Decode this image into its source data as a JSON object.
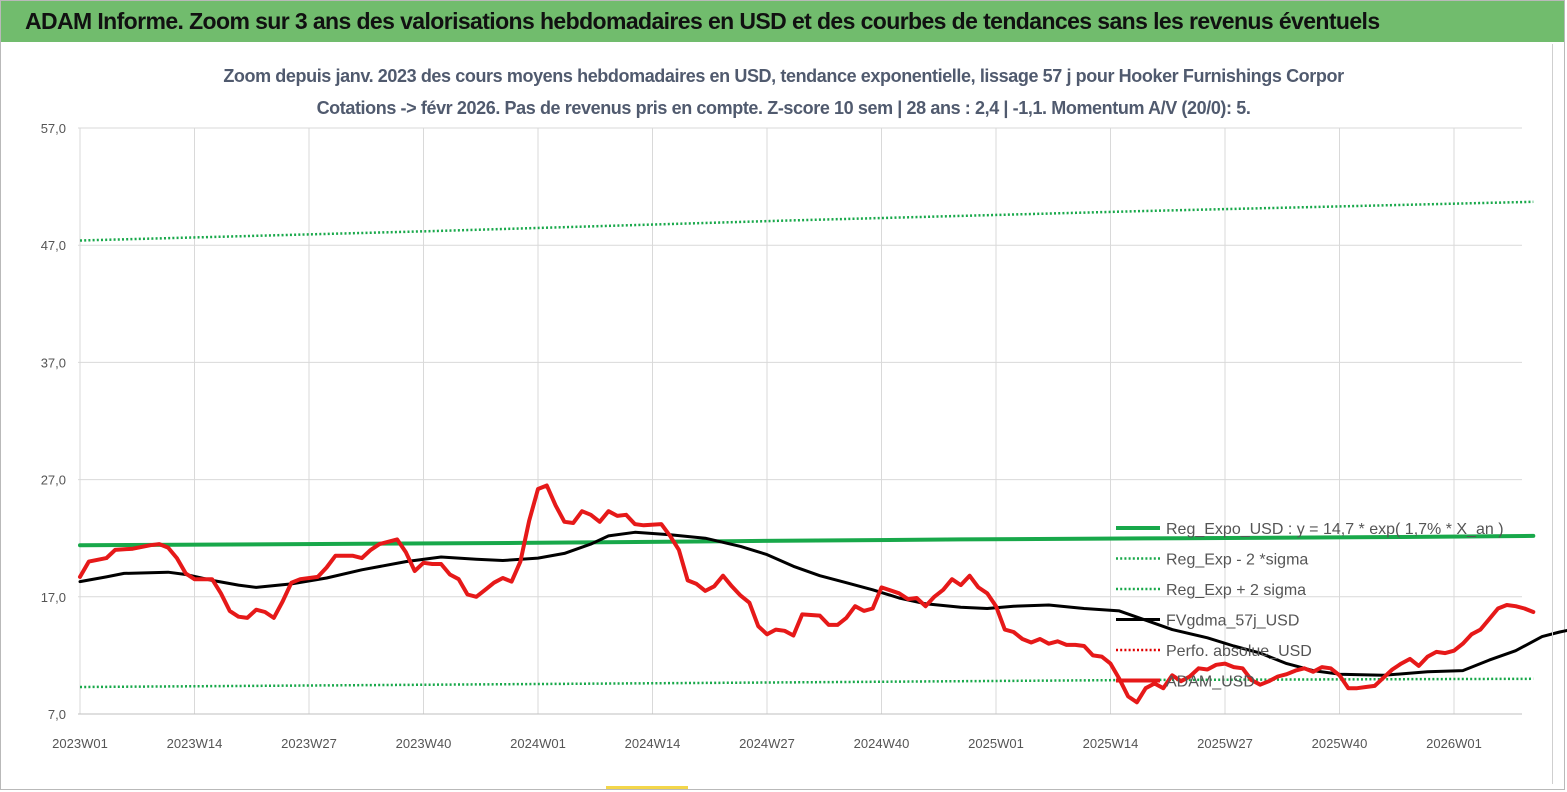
{
  "banner": {
    "title": "ADAM Informe. Zoom sur 3 ans des valorisations hebdomadaires en USD et des courbes de tendances sans les revenus éventuels",
    "background": "#71bc6d"
  },
  "chart_data": {
    "type": "line",
    "title": "Zoom depuis janv. 2023 des cours moyens hebdomadaires en USD, tendance exponentielle, lissage 57 j pour Hooker Furnishings Corpor",
    "subtitle": "Cotations -> févr 2026. Pas de revenus pris en compte. Z-score 10 sem  | 28 ans : 2,4 | -1,1. Momentum A/V (20/0): 5.",
    "xlabel": "",
    "ylabel": "",
    "x_ticks": [
      "2023W01",
      "2023W14",
      "2023W27",
      "2023W40",
      "2024W01",
      "2024W14",
      "2024W27",
      "2024W40",
      "2025W01",
      "2025W14",
      "2025W27",
      "2025W40",
      "2026W01"
    ],
    "x_range_weeks": [
      0,
      165
    ],
    "y_ticks": [
      "57,0",
      "47,0",
      "37,0",
      "27,0",
      "17,0",
      "7,0"
    ],
    "ylim": [
      7,
      57
    ],
    "grid": true,
    "legend_position": "right",
    "series": [
      {
        "name": "Reg_Expo_USD : y = 14,7 * exp( 1,7% *  X_an )",
        "color": "#18a84a",
        "style": "solid-thick",
        "points": [
          [
            0,
            21.4
          ],
          [
            25,
            21.5
          ],
          [
            50,
            21.6
          ],
          [
            75,
            21.75
          ],
          [
            100,
            21.9
          ],
          [
            125,
            22.0
          ],
          [
            150,
            22.1
          ],
          [
            165,
            22.2
          ]
        ]
      },
      {
        "name": "Reg_Exp - 2 *sigma",
        "color": "#18a84a",
        "style": "dotted",
        "points": [
          [
            0,
            9.3
          ],
          [
            40,
            9.5
          ],
          [
            80,
            9.7
          ],
          [
            120,
            9.9
          ],
          [
            165,
            10.0
          ]
        ]
      },
      {
        "name": "Reg_Exp + 2 sigma",
        "color": "#18a84a",
        "style": "dotted",
        "points": [
          [
            0,
            47.4
          ],
          [
            40,
            48.2
          ],
          [
            80,
            49.1
          ],
          [
            120,
            49.9
          ],
          [
            165,
            50.7
          ]
        ]
      },
      {
        "name": "FVgdma_57j_USD",
        "color": "#000000",
        "style": "solid",
        "points": [
          [
            0,
            18.3
          ],
          [
            3,
            18.7
          ],
          [
            5,
            19.0
          ],
          [
            10,
            19.1
          ],
          [
            12,
            18.9
          ],
          [
            15,
            18.4
          ],
          [
            18,
            18.0
          ],
          [
            20,
            17.8
          ],
          [
            24,
            18.1
          ],
          [
            28,
            18.6
          ],
          [
            32,
            19.3
          ],
          [
            37,
            20.0
          ],
          [
            41,
            20.4
          ],
          [
            45,
            20.2
          ],
          [
            48,
            20.1
          ],
          [
            52,
            20.3
          ],
          [
            55,
            20.7
          ],
          [
            58,
            21.5
          ],
          [
            60,
            22.2
          ],
          [
            63,
            22.5
          ],
          [
            67,
            22.3
          ],
          [
            71,
            22.0
          ],
          [
            75,
            21.3
          ],
          [
            78,
            20.6
          ],
          [
            81,
            19.6
          ],
          [
            84,
            18.8
          ],
          [
            87,
            18.2
          ],
          [
            90,
            17.6
          ],
          [
            93,
            16.9
          ],
          [
            96,
            16.4
          ],
          [
            100,
            16.1
          ],
          [
            103,
            16.0
          ],
          [
            106,
            16.2
          ],
          [
            110,
            16.3
          ],
          [
            114,
            16.0
          ],
          [
            118,
            15.8
          ],
          [
            121,
            15.0
          ],
          [
            124,
            14.2
          ],
          [
            128,
            13.5
          ],
          [
            131,
            12.8
          ],
          [
            134,
            12.2
          ],
          [
            137,
            11.3
          ],
          [
            140,
            10.7
          ],
          [
            143,
            10.4
          ],
          [
            148,
            10.3
          ],
          [
            153,
            10.6
          ],
          [
            157,
            10.7
          ],
          [
            160,
            11.6
          ],
          [
            163,
            12.4
          ],
          [
            166,
            13.6
          ],
          [
            168,
            14.0
          ],
          [
            170,
            14.3
          ],
          [
            171,
            14.4
          ]
        ]
      },
      {
        "name": "Perfo. absolue_USD",
        "color": "#e00000",
        "style": "dotted",
        "points": []
      },
      {
        "name": "ADAM_USD",
        "color": "#e61919",
        "style": "solid-thick",
        "points": [
          [
            0,
            18.7
          ],
          [
            1,
            20.0
          ],
          [
            3,
            20.3
          ],
          [
            4,
            21.0
          ],
          [
            6,
            21.1
          ],
          [
            8,
            21.4
          ],
          [
            9,
            21.5
          ],
          [
            10,
            21.2
          ],
          [
            11,
            20.3
          ],
          [
            12,
            19.0
          ],
          [
            13,
            18.5
          ],
          [
            15,
            18.5
          ],
          [
            16,
            17.3
          ],
          [
            17,
            15.8
          ],
          [
            18,
            15.3
          ],
          [
            19,
            15.2
          ],
          [
            20,
            15.9
          ],
          [
            21,
            15.7
          ],
          [
            22,
            15.2
          ],
          [
            23,
            16.6
          ],
          [
            24,
            18.2
          ],
          [
            25,
            18.5
          ],
          [
            27,
            18.7
          ],
          [
            28,
            19.5
          ],
          [
            29,
            20.5
          ],
          [
            31,
            20.5
          ],
          [
            32,
            20.3
          ],
          [
            33,
            21.0
          ],
          [
            34,
            21.5
          ],
          [
            36,
            21.9
          ],
          [
            37,
            20.8
          ],
          [
            38,
            19.2
          ],
          [
            39,
            19.9
          ],
          [
            40,
            19.8
          ],
          [
            41,
            19.8
          ],
          [
            42,
            18.9
          ],
          [
            43,
            18.5
          ],
          [
            44,
            17.2
          ],
          [
            45,
            17.0
          ],
          [
            46,
            17.6
          ],
          [
            47,
            18.2
          ],
          [
            48,
            18.6
          ],
          [
            49,
            18.3
          ],
          [
            50,
            20.0
          ],
          [
            51,
            23.5
          ],
          [
            52,
            26.2
          ],
          [
            53,
            26.5
          ],
          [
            54,
            24.8
          ],
          [
            55,
            23.4
          ],
          [
            56,
            23.3
          ],
          [
            57,
            24.3
          ],
          [
            58,
            24.0
          ],
          [
            59,
            23.4
          ],
          [
            60,
            24.3
          ],
          [
            61,
            23.9
          ],
          [
            62,
            24.0
          ],
          [
            63,
            23.2
          ],
          [
            64,
            23.1
          ],
          [
            66,
            23.2
          ],
          [
            67,
            22.2
          ],
          [
            68,
            21.0
          ],
          [
            69,
            18.4
          ],
          [
            70,
            18.1
          ],
          [
            71,
            17.5
          ],
          [
            72,
            17.9
          ],
          [
            73,
            18.8
          ],
          [
            74,
            17.9
          ],
          [
            75,
            17.1
          ],
          [
            76,
            16.5
          ],
          [
            77,
            14.5
          ],
          [
            78,
            13.8
          ],
          [
            79,
            14.2
          ],
          [
            80,
            14.1
          ],
          [
            81,
            13.7
          ],
          [
            82,
            15.5
          ],
          [
            84,
            15.4
          ],
          [
            85,
            14.6
          ],
          [
            86,
            14.6
          ],
          [
            87,
            15.2
          ],
          [
            88,
            16.2
          ],
          [
            89,
            15.8
          ],
          [
            90,
            16.0
          ],
          [
            91,
            17.8
          ],
          [
            93,
            17.3
          ],
          [
            94,
            16.8
          ],
          [
            95,
            16.9
          ],
          [
            96,
            16.2
          ],
          [
            97,
            17.0
          ],
          [
            98,
            17.6
          ],
          [
            99,
            18.5
          ],
          [
            100,
            18.0
          ],
          [
            101,
            18.8
          ],
          [
            102,
            17.8
          ],
          [
            103,
            17.3
          ],
          [
            104,
            16.2
          ],
          [
            105,
            14.2
          ],
          [
            106,
            14.0
          ],
          [
            107,
            13.4
          ],
          [
            108,
            13.1
          ],
          [
            109,
            13.4
          ],
          [
            110,
            13.0
          ],
          [
            111,
            13.2
          ],
          [
            112,
            12.9
          ],
          [
            113,
            12.9
          ],
          [
            114,
            12.8
          ],
          [
            115,
            12.0
          ],
          [
            116,
            11.9
          ],
          [
            117,
            11.3
          ],
          [
            118,
            10.0
          ],
          [
            119,
            8.5
          ],
          [
            120,
            8.0
          ],
          [
            121,
            9.2
          ],
          [
            122,
            9.6
          ],
          [
            123,
            9.2
          ],
          [
            124,
            10.3
          ],
          [
            125,
            9.8
          ],
          [
            126,
            10.2
          ],
          [
            127,
            10.9
          ],
          [
            128,
            10.8
          ],
          [
            129,
            11.2
          ],
          [
            130,
            11.3
          ],
          [
            131,
            11.0
          ],
          [
            132,
            10.9
          ],
          [
            133,
            9.9
          ],
          [
            134,
            9.5
          ],
          [
            135,
            9.8
          ],
          [
            136,
            10.2
          ],
          [
            137,
            10.4
          ],
          [
            138,
            10.7
          ],
          [
            139,
            10.9
          ],
          [
            140,
            10.6
          ],
          [
            141,
            11.0
          ],
          [
            142,
            10.9
          ],
          [
            143,
            10.3
          ],
          [
            144,
            9.2
          ],
          [
            145,
            9.2
          ],
          [
            146,
            9.3
          ],
          [
            147,
            9.4
          ],
          [
            148,
            10.1
          ],
          [
            149,
            10.8
          ],
          [
            150,
            11.3
          ],
          [
            151,
            11.7
          ],
          [
            152,
            11.1
          ],
          [
            153,
            11.9
          ],
          [
            154,
            12.3
          ],
          [
            155,
            12.2
          ],
          [
            156,
            12.4
          ],
          [
            157,
            13.0
          ],
          [
            158,
            13.8
          ],
          [
            159,
            14.2
          ],
          [
            160,
            15.1
          ],
          [
            161,
            16.0
          ],
          [
            162,
            16.3
          ],
          [
            163,
            16.2
          ],
          [
            164,
            16.0
          ],
          [
            165,
            15.7
          ]
        ]
      }
    ]
  }
}
